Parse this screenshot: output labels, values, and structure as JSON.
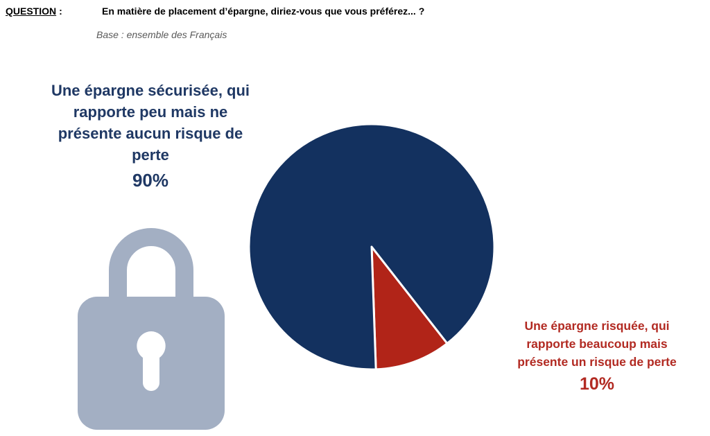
{
  "header": {
    "question_label": "QUESTION",
    "question_colon": ":",
    "question_text": "En matière de placement d’épargne, diriez-vous que vous préférez... ?",
    "base_text": "Base : ensemble des Français"
  },
  "colors": {
    "safe": "#13315f",
    "risky": "#b12418",
    "lock": "#a3afc3"
  },
  "icons": {
    "lock": "padlock-icon"
  },
  "chart_data": {
    "type": "pie",
    "slices": [
      {
        "label": "Une épargne sécurisée, qui rapporte peu mais ne présente aucun risque de perte",
        "value": 90,
        "display": "90%",
        "color": "#13315f"
      },
      {
        "label": "Une épargne risquée, qui rapporte beaucoup mais présente un risque de perte",
        "value": 10,
        "display": "10%",
        "color": "#b12418"
      }
    ]
  }
}
